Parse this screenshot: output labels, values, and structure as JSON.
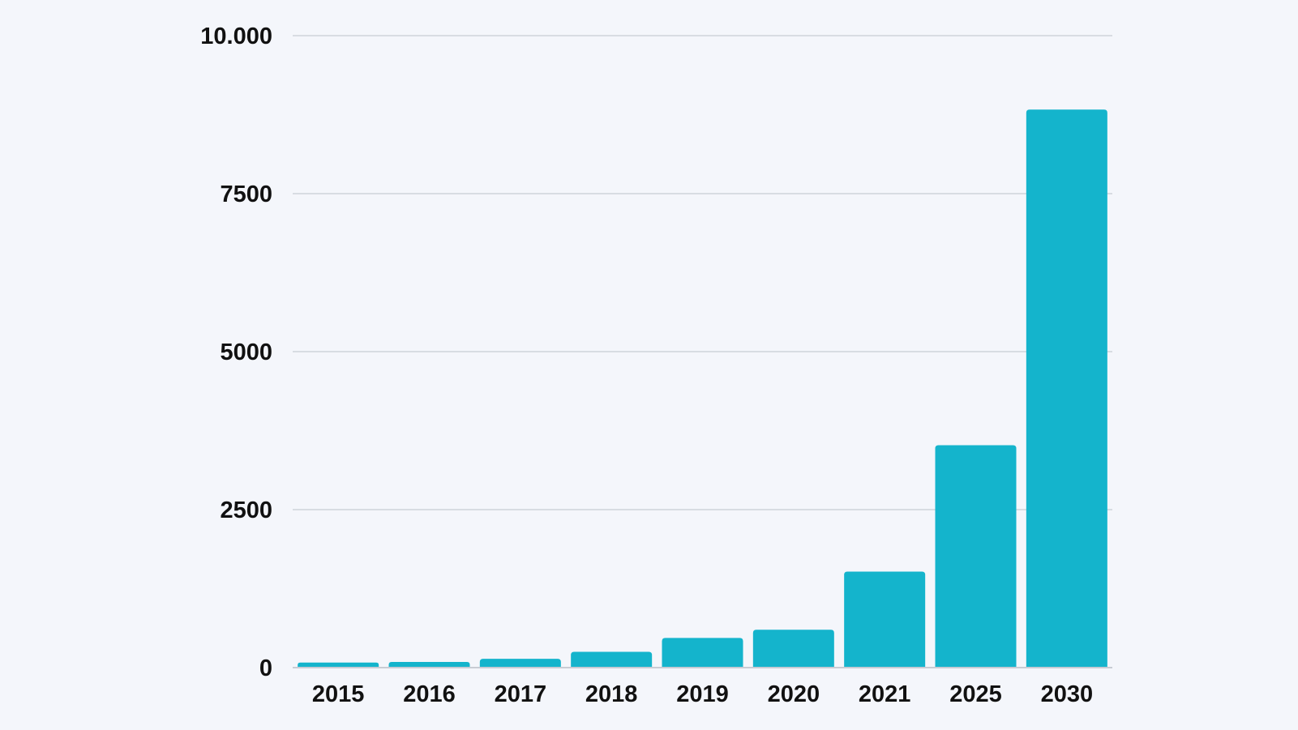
{
  "colors": {
    "background": "#f4f6fb",
    "bar": "#14b4cc",
    "grid": "#cfd3da",
    "text": "#111111"
  },
  "chart_data": {
    "type": "bar",
    "title": "",
    "xlabel": "",
    "ylabel": "",
    "categories": [
      "2015",
      "2016",
      "2017",
      "2018",
      "2019",
      "2020",
      "2021",
      "2025",
      "2030"
    ],
    "values": [
      80,
      90,
      140,
      250,
      470,
      600,
      1520,
      3520,
      8830
    ],
    "ylim": [
      0,
      10000
    ],
    "yticks": [
      {
        "value": 0,
        "label": "0"
      },
      {
        "value": 2500,
        "label": "2500"
      },
      {
        "value": 5000,
        "label": "5000"
      },
      {
        "value": 7500,
        "label": "7500"
      },
      {
        "value": 10000,
        "label": "10.000"
      }
    ],
    "grid": true,
    "legend": "none"
  }
}
